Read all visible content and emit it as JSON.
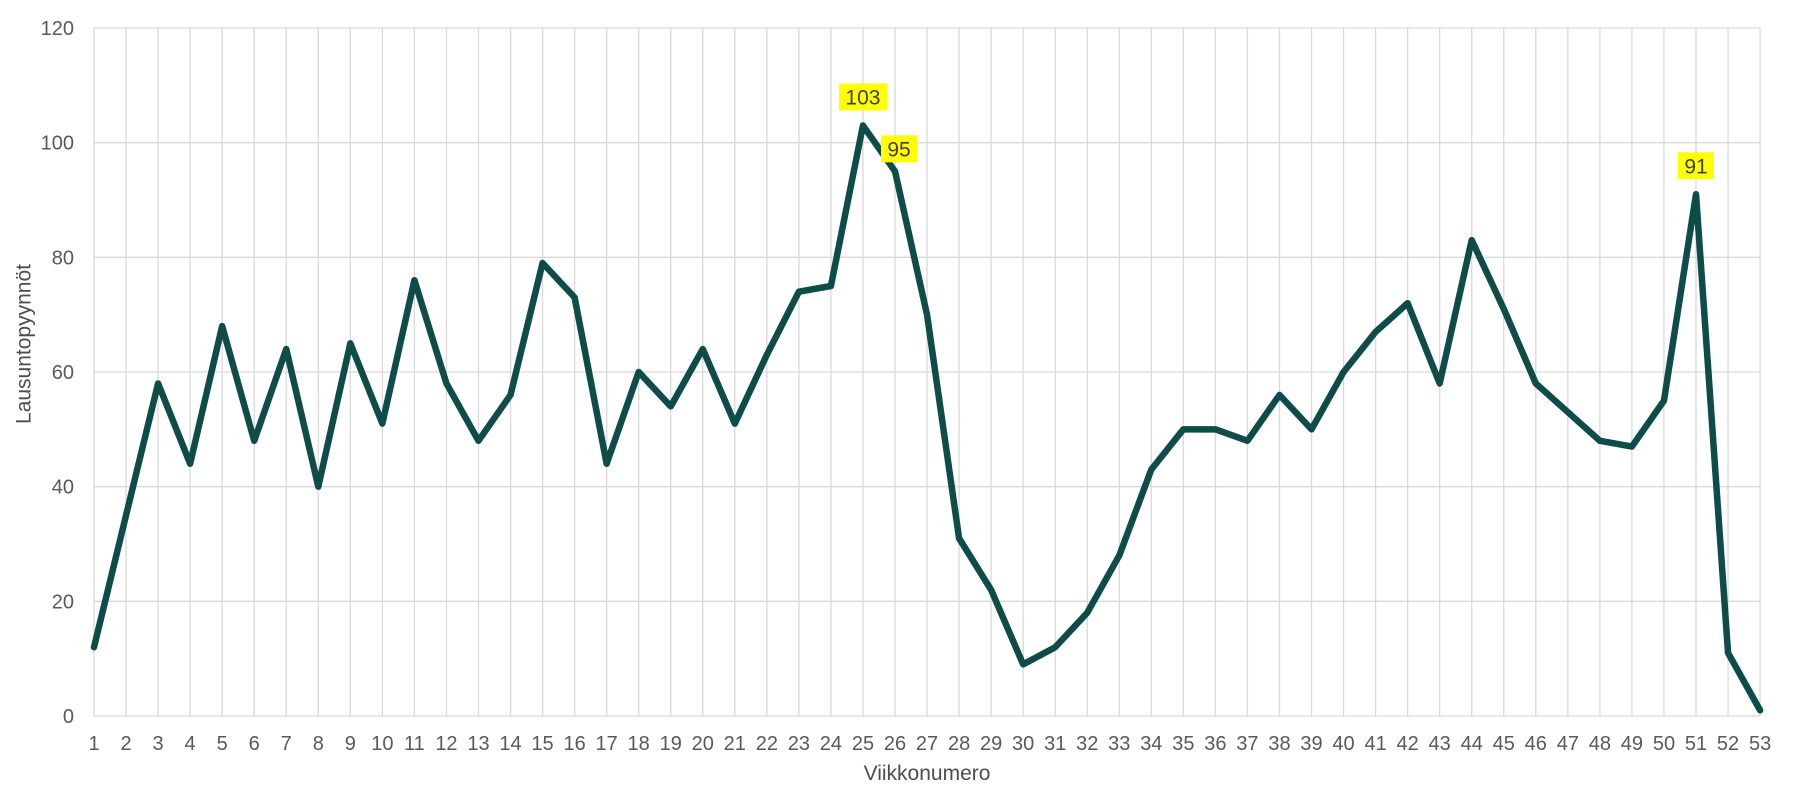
{
  "chart_data": {
    "type": "line",
    "title": "",
    "xlabel": "Viikkonumero",
    "ylabel": "Lausuntopyynnöt",
    "x": [
      1,
      2,
      3,
      4,
      5,
      6,
      7,
      8,
      9,
      10,
      11,
      12,
      13,
      14,
      15,
      16,
      17,
      18,
      19,
      20,
      21,
      22,
      23,
      24,
      25,
      26,
      27,
      28,
      29,
      30,
      31,
      32,
      33,
      34,
      35,
      36,
      37,
      38,
      39,
      40,
      41,
      42,
      43,
      44,
      45,
      46,
      47,
      48,
      49,
      50,
      51,
      52,
      53
    ],
    "values": [
      12,
      35,
      58,
      44,
      68,
      48,
      64,
      40,
      65,
      51,
      76,
      58,
      48,
      56,
      79,
      73,
      44,
      60,
      54,
      64,
      51,
      63,
      74,
      75,
      103,
      95,
      70,
      31,
      22,
      9,
      12,
      18,
      28,
      43,
      50,
      50,
      48,
      56,
      50,
      60,
      67,
      72,
      58,
      83,
      71,
      58,
      53,
      48,
      47,
      55,
      91,
      11,
      1
    ],
    "ylim": [
      0,
      120
    ],
    "yticks": [
      0,
      20,
      40,
      60,
      80,
      100,
      120
    ],
    "grid": "both",
    "legend": "none",
    "line_color": "#0e4c49",
    "grid_color": "#d9d9d9",
    "tick_color": "#595959",
    "axis_title_color": "#4d4d4d",
    "label_text_color": "#3f3f3f",
    "highlight_color": "#ffff00",
    "data_labels": [
      {
        "week": 25,
        "value": 103,
        "text": "103",
        "placement": "above"
      },
      {
        "week": 26,
        "value": 95,
        "text": "95",
        "placement": "upper-right"
      },
      {
        "week": 51,
        "value": 91,
        "text": "91",
        "placement": "above"
      }
    ]
  }
}
